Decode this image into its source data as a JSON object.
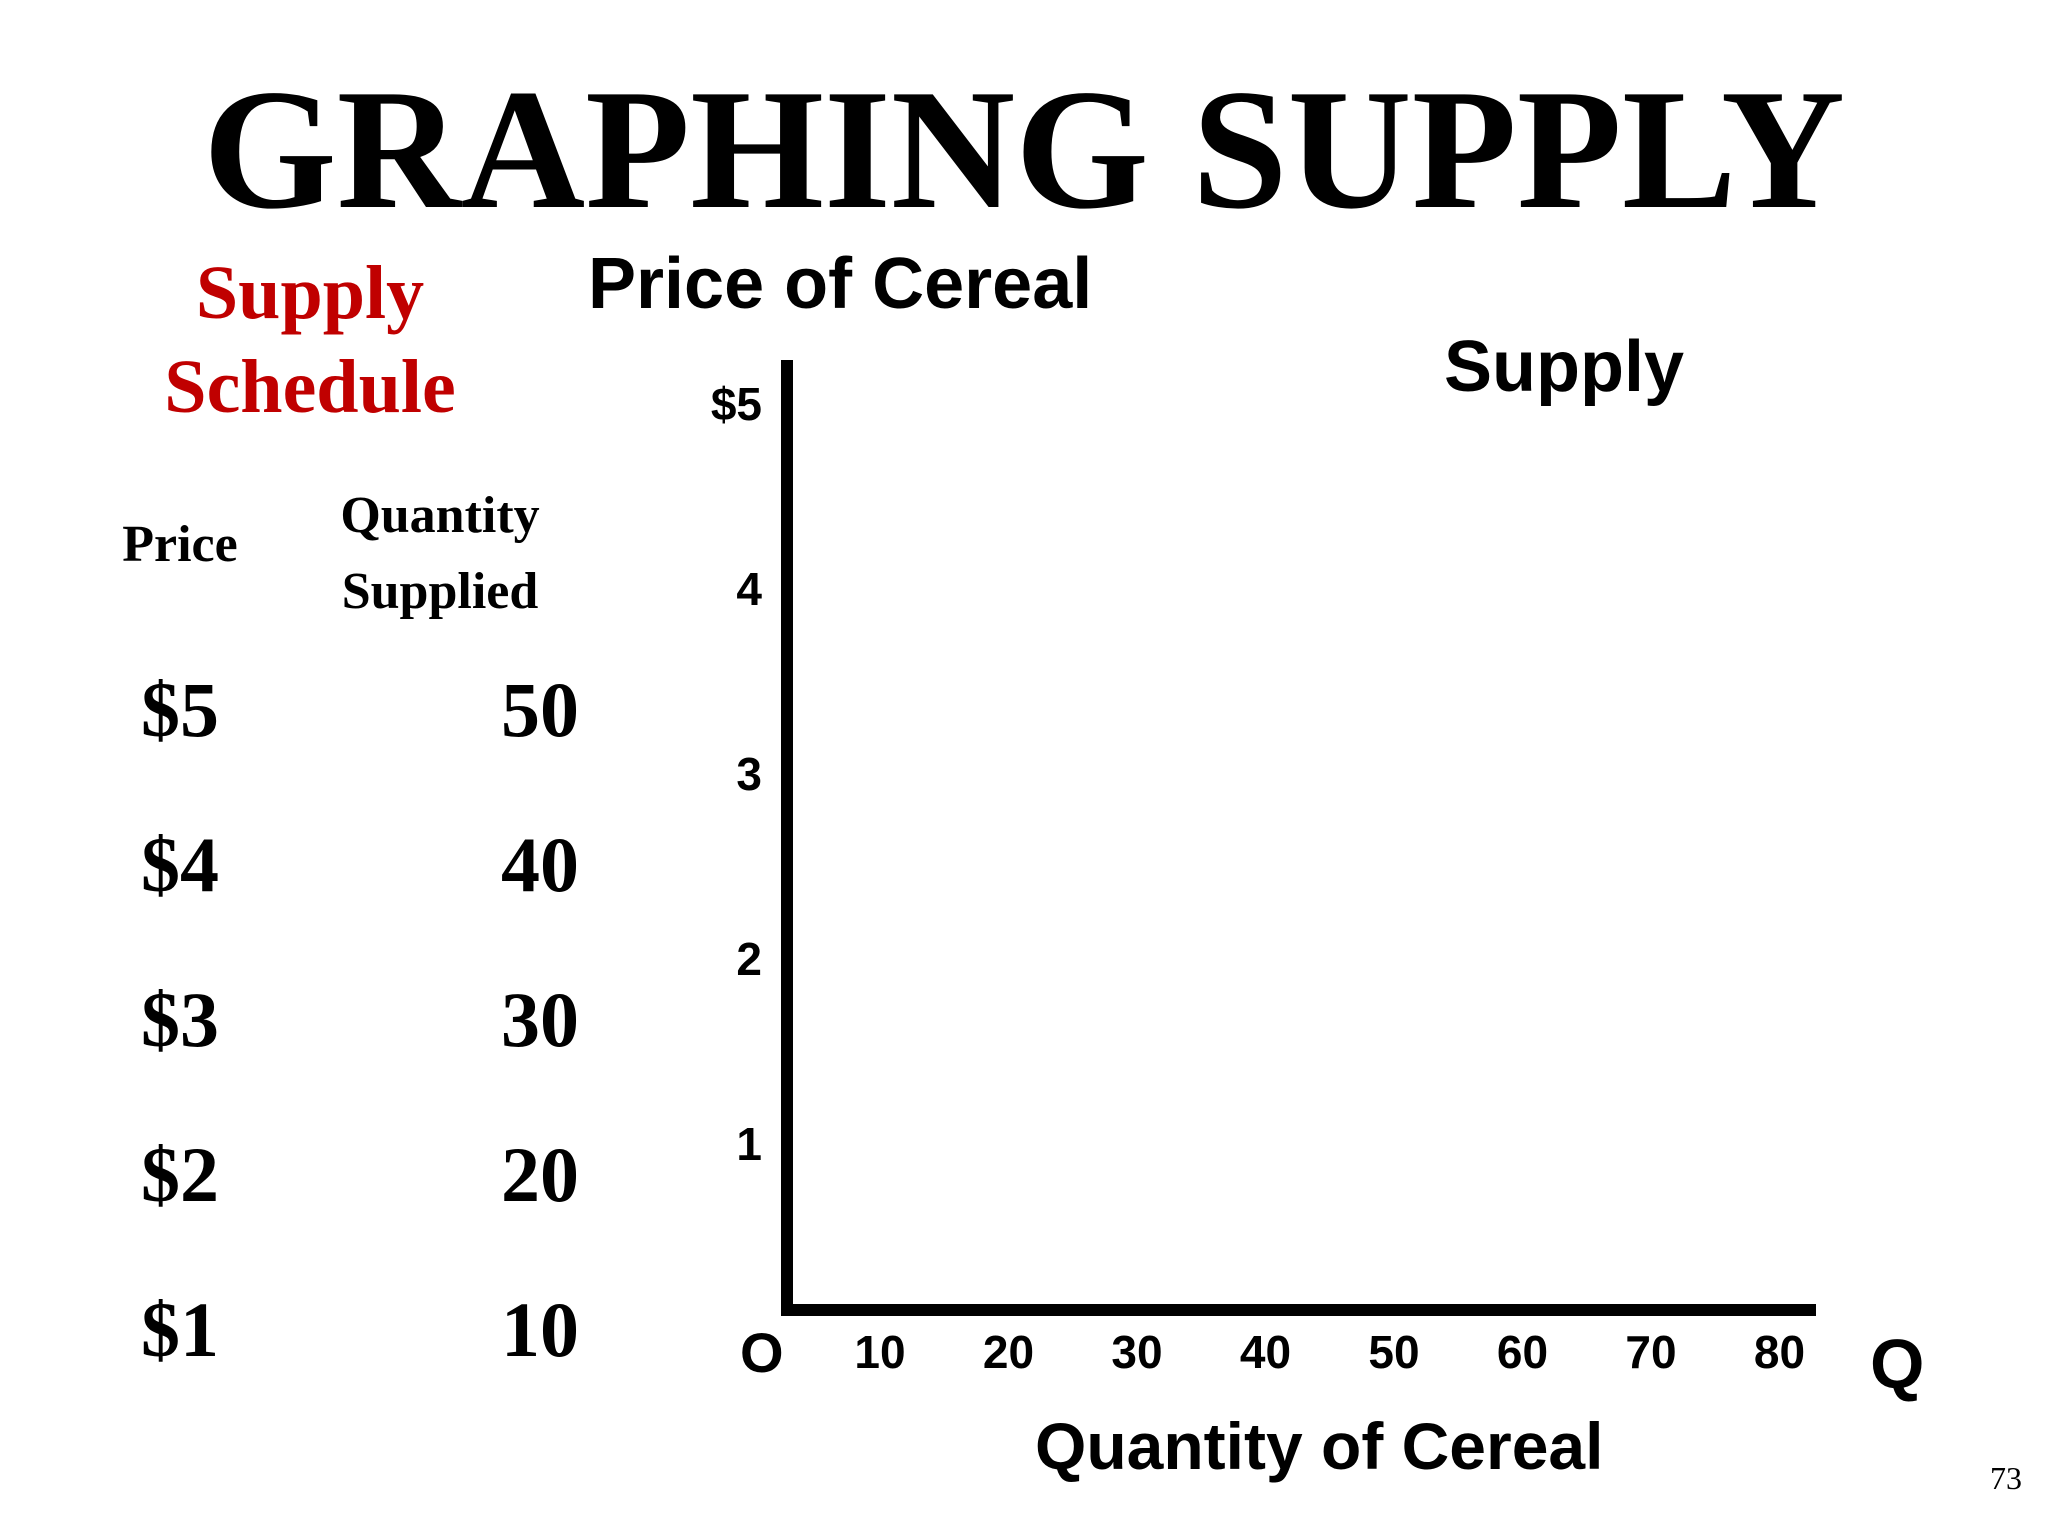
{
  "slide": {
    "title": "GRAPHING SUPPLY",
    "slide_number": "73"
  },
  "schedule": {
    "title": "Supply Schedule",
    "price_header": "Price",
    "quantity_header": "Quantity Supplied",
    "rows": [
      {
        "price": "$5",
        "quantity": "50"
      },
      {
        "price": "$4",
        "quantity": "40"
      },
      {
        "price": "$3",
        "quantity": "30"
      },
      {
        "price": "$2",
        "quantity": "20"
      },
      {
        "price": "$1",
        "quantity": "10"
      }
    ]
  },
  "chart_data": {
    "type": "line",
    "title": "",
    "ylabel": "Price of Cereal",
    "xlabel": "Quantity of Cereal",
    "curve_label": "Supply",
    "origin_label": "O",
    "x_axis_symbol": "Q",
    "y_ticks": [
      "$5",
      "4",
      "3",
      "2",
      "1"
    ],
    "x_ticks": [
      "10",
      "20",
      "30",
      "40",
      "50",
      "60",
      "70",
      "80"
    ],
    "ylim": [
      0,
      5
    ],
    "xlim": [
      0,
      80
    ],
    "grid": false,
    "series": []
  },
  "colors": {
    "schedule_title": "#c00000",
    "text": "#000000",
    "background": "#ffffff"
  }
}
